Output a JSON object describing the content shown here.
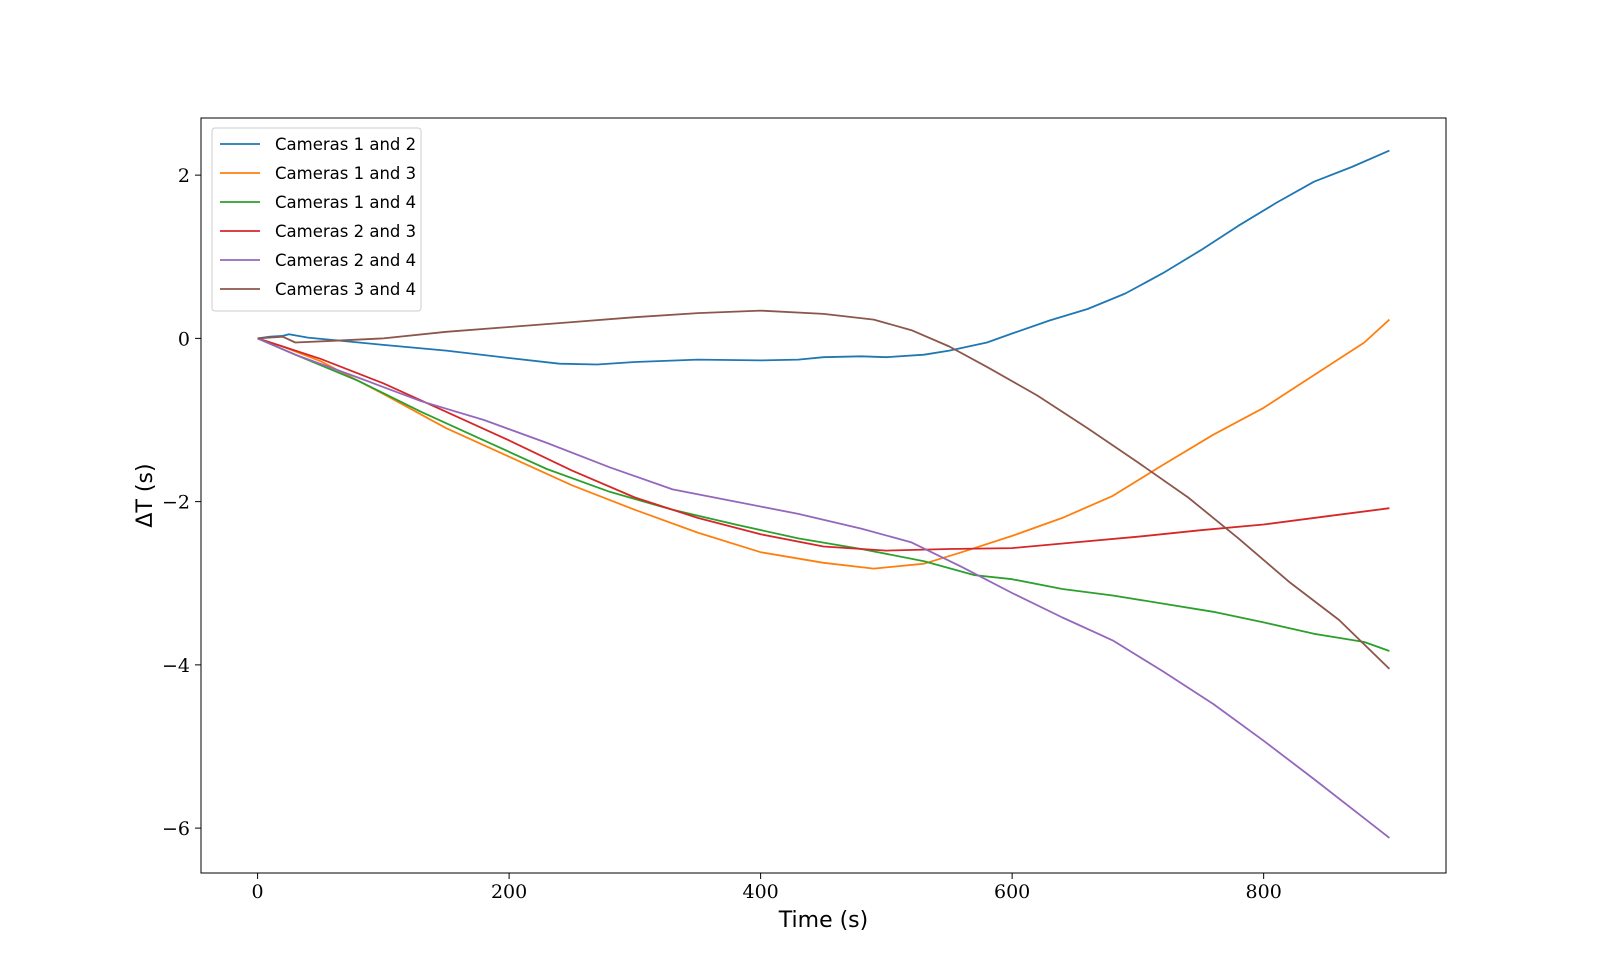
{
  "chart_data": {
    "type": "line",
    "xlabel": "Time (s)",
    "ylabel": "ΔT (s)",
    "xlim": [
      -45,
      945
    ],
    "ylim": [
      -6.55,
      2.7
    ],
    "xticks": [
      0,
      200,
      400,
      600,
      800
    ],
    "yticks": [
      2,
      0,
      -2,
      -4,
      -6
    ],
    "x_tick_labels": [
      "0",
      "200",
      "400",
      "600",
      "800"
    ],
    "y_tick_labels": [
      "2",
      "0",
      "−2",
      "−4",
      "−6"
    ],
    "grid": false,
    "legend_position": "top-left",
    "series": [
      {
        "name": "Cameras 1 and 2",
        "color": "#1f77b4",
        "points": [
          [
            0,
            0
          ],
          [
            10,
            0.02
          ],
          [
            20,
            0.03
          ],
          [
            25,
            0.05
          ],
          [
            40,
            0.01
          ],
          [
            60,
            -0.02
          ],
          [
            100,
            -0.08
          ],
          [
            150,
            -0.15
          ],
          [
            200,
            -0.24
          ],
          [
            240,
            -0.31
          ],
          [
            270,
            -0.32
          ],
          [
            300,
            -0.29
          ],
          [
            350,
            -0.26
          ],
          [
            400,
            -0.27
          ],
          [
            430,
            -0.26
          ],
          [
            450,
            -0.23
          ],
          [
            480,
            -0.22
          ],
          [
            500,
            -0.23
          ],
          [
            530,
            -0.2
          ],
          [
            550,
            -0.15
          ],
          [
            580,
            -0.05
          ],
          [
            600,
            0.06
          ],
          [
            630,
            0.22
          ],
          [
            660,
            0.36
          ],
          [
            690,
            0.55
          ],
          [
            720,
            0.8
          ],
          [
            750,
            1.08
          ],
          [
            780,
            1.38
          ],
          [
            810,
            1.66
          ],
          [
            840,
            1.92
          ],
          [
            870,
            2.1
          ],
          [
            900,
            2.3
          ]
        ]
      },
      {
        "name": "Cameras 1 and 3",
        "color": "#ff7f0e",
        "points": [
          [
            0,
            0
          ],
          [
            20,
            -0.1
          ],
          [
            50,
            -0.28
          ],
          [
            100,
            -0.68
          ],
          [
            150,
            -1.1
          ],
          [
            200,
            -1.45
          ],
          [
            250,
            -1.8
          ],
          [
            300,
            -2.1
          ],
          [
            350,
            -2.38
          ],
          [
            400,
            -2.62
          ],
          [
            450,
            -2.75
          ],
          [
            490,
            -2.82
          ],
          [
            530,
            -2.76
          ],
          [
            560,
            -2.62
          ],
          [
            600,
            -2.42
          ],
          [
            640,
            -2.2
          ],
          [
            680,
            -1.93
          ],
          [
            720,
            -1.55
          ],
          [
            760,
            -1.18
          ],
          [
            800,
            -0.85
          ],
          [
            840,
            -0.45
          ],
          [
            880,
            -0.05
          ],
          [
            900,
            0.23
          ]
        ]
      },
      {
        "name": "Cameras 1 and 4",
        "color": "#2ca02c",
        "points": [
          [
            0,
            0
          ],
          [
            30,
            -0.2
          ],
          [
            80,
            -0.52
          ],
          [
            130,
            -0.9
          ],
          [
            180,
            -1.25
          ],
          [
            230,
            -1.6
          ],
          [
            280,
            -1.88
          ],
          [
            330,
            -2.1
          ],
          [
            380,
            -2.28
          ],
          [
            430,
            -2.45
          ],
          [
            480,
            -2.58
          ],
          [
            530,
            -2.73
          ],
          [
            570,
            -2.9
          ],
          [
            600,
            -2.95
          ],
          [
            640,
            -3.07
          ],
          [
            680,
            -3.15
          ],
          [
            720,
            -3.25
          ],
          [
            760,
            -3.35
          ],
          [
            800,
            -3.48
          ],
          [
            840,
            -3.62
          ],
          [
            880,
            -3.72
          ],
          [
            900,
            -3.83
          ]
        ]
      },
      {
        "name": "Cameras 2 and 3",
        "color": "#d62728",
        "points": [
          [
            0,
            0
          ],
          [
            20,
            -0.1
          ],
          [
            50,
            -0.25
          ],
          [
            100,
            -0.55
          ],
          [
            150,
            -0.9
          ],
          [
            200,
            -1.25
          ],
          [
            250,
            -1.62
          ],
          [
            300,
            -1.95
          ],
          [
            350,
            -2.2
          ],
          [
            400,
            -2.4
          ],
          [
            450,
            -2.55
          ],
          [
            500,
            -2.6
          ],
          [
            550,
            -2.58
          ],
          [
            600,
            -2.57
          ],
          [
            650,
            -2.5
          ],
          [
            700,
            -2.43
          ],
          [
            750,
            -2.35
          ],
          [
            800,
            -2.28
          ],
          [
            850,
            -2.18
          ],
          [
            900,
            -2.08
          ]
        ]
      },
      {
        "name": "Cameras 2 and 4",
        "color": "#9467bd",
        "points": [
          [
            0,
            0
          ],
          [
            30,
            -0.2
          ],
          [
            80,
            -0.48
          ],
          [
            130,
            -0.77
          ],
          [
            180,
            -1.0
          ],
          [
            230,
            -1.28
          ],
          [
            280,
            -1.58
          ],
          [
            330,
            -1.85
          ],
          [
            380,
            -2.0
          ],
          [
            430,
            -2.15
          ],
          [
            480,
            -2.33
          ],
          [
            520,
            -2.5
          ],
          [
            560,
            -2.8
          ],
          [
            600,
            -3.12
          ],
          [
            640,
            -3.42
          ],
          [
            680,
            -3.7
          ],
          [
            720,
            -4.08
          ],
          [
            760,
            -4.48
          ],
          [
            800,
            -4.93
          ],
          [
            840,
            -5.4
          ],
          [
            880,
            -5.88
          ],
          [
            900,
            -6.12
          ]
        ]
      },
      {
        "name": "Cameras 3 and 4",
        "color": "#8c564b",
        "points": [
          [
            0,
            0
          ],
          [
            20,
            0.02
          ],
          [
            30,
            -0.05
          ],
          [
            60,
            -0.03
          ],
          [
            100,
            0.0
          ],
          [
            150,
            0.08
          ],
          [
            200,
            0.14
          ],
          [
            250,
            0.2
          ],
          [
            300,
            0.26
          ],
          [
            350,
            0.31
          ],
          [
            400,
            0.34
          ],
          [
            450,
            0.3
          ],
          [
            490,
            0.23
          ],
          [
            520,
            0.1
          ],
          [
            550,
            -0.1
          ],
          [
            580,
            -0.35
          ],
          [
            620,
            -0.7
          ],
          [
            660,
            -1.1
          ],
          [
            700,
            -1.52
          ],
          [
            740,
            -1.95
          ],
          [
            780,
            -2.45
          ],
          [
            820,
            -2.98
          ],
          [
            860,
            -3.45
          ],
          [
            900,
            -4.05
          ]
        ]
      }
    ]
  }
}
